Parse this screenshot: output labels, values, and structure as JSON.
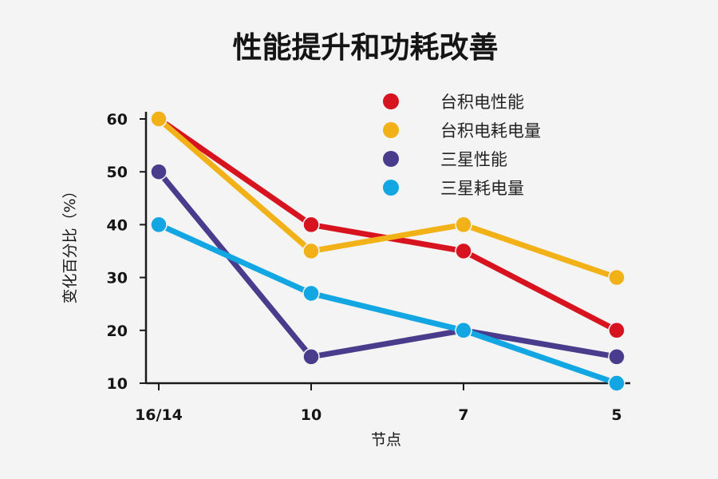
{
  "chart_data": {
    "type": "line",
    "title": "性能提升和功耗改善",
    "xlabel": "节点",
    "ylabel": "变化百分比（%）",
    "categories": [
      "16/14",
      "10",
      "7",
      "5"
    ],
    "ylim": [
      10,
      60
    ],
    "yticks": [
      10,
      20,
      30,
      40,
      50,
      60
    ],
    "grid": false,
    "legend_position": "top-right",
    "series": [
      {
        "name": "台积电性能",
        "color": "#d7131f",
        "values": [
          60,
          40,
          35,
          20
        ]
      },
      {
        "name": "台积电耗电量",
        "color": "#f2b116",
        "values": [
          60,
          35,
          40,
          30
        ]
      },
      {
        "name": "三星性能",
        "color": "#4a3c8c",
        "values": [
          50,
          15,
          20,
          15
        ]
      },
      {
        "name": "三星耗电量",
        "color": "#12a6e3",
        "values": [
          40,
          27,
          20,
          10
        ]
      }
    ]
  }
}
